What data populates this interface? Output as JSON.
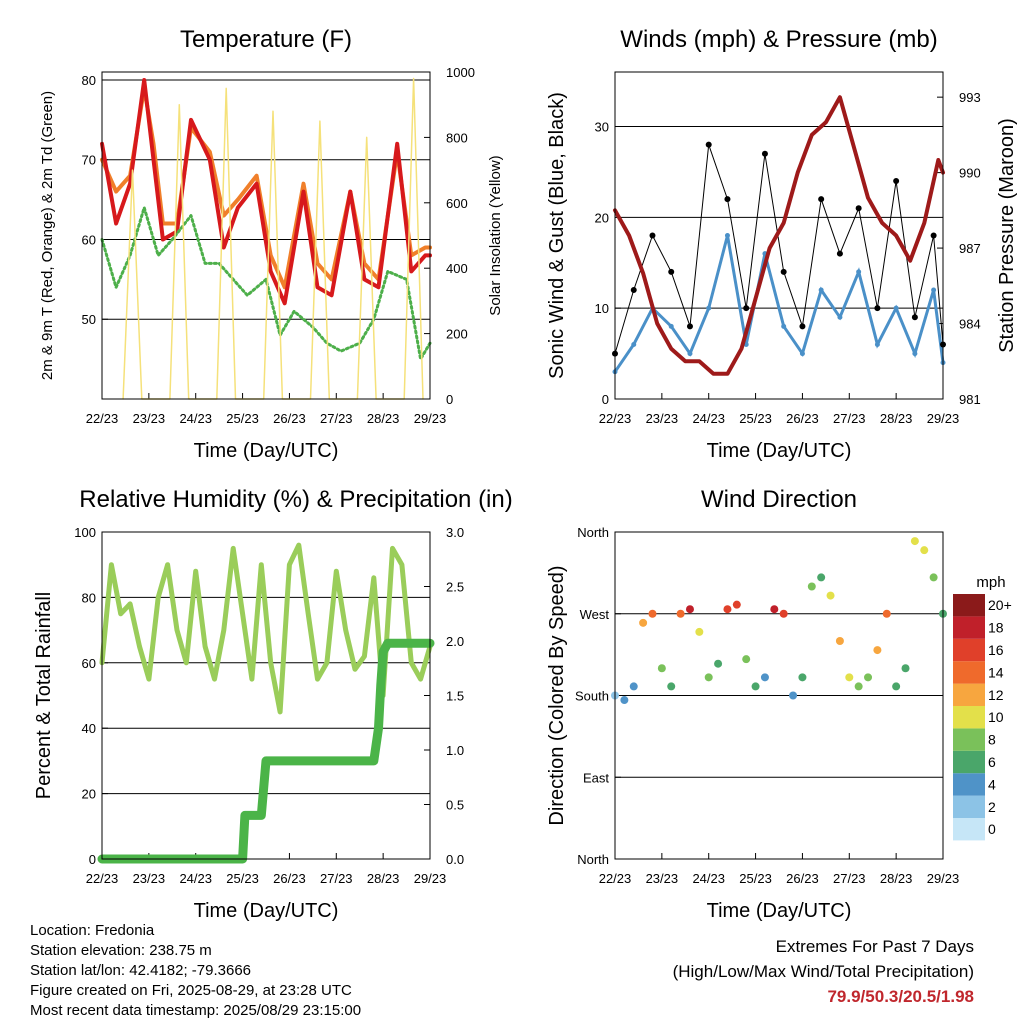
{
  "chart_data": [
    {
      "type": "line",
      "title": "Temperature (F)",
      "xlabel": "Time (Day/UTC)",
      "ylabel": "2m & 9m T (Red, Orange) & 2m Td (Green)",
      "y2label": "Solar Insolation (Yellow)",
      "x_ticks": [
        "22/23",
        "23/23",
        "24/23",
        "25/23",
        "26/23",
        "27/23",
        "28/23",
        "29/23"
      ],
      "ylim": [
        40,
        81
      ],
      "y_ticks": [
        50,
        60,
        70,
        80
      ],
      "y2lim": [
        0,
        1000
      ],
      "y2_ticks": [
        0,
        200,
        400,
        600,
        800,
        1000
      ],
      "grid": true,
      "colors": {
        "t2m": "#d7191c",
        "t9m": "#f07f2a",
        "td2m": "#4daf4a",
        "solar": "#f5e17a"
      },
      "series": [
        {
          "key": "t9m",
          "x": [
            0,
            0.3,
            0.6,
            0.9,
            1.1,
            1.3,
            1.6,
            1.9,
            2.3,
            2.6,
            2.9,
            3.3,
            3.6,
            3.9,
            4.3,
            4.6,
            4.9,
            5.3,
            5.6,
            5.9,
            6.3,
            6.6,
            6.9,
            7.0
          ],
          "values": [
            70,
            66,
            68,
            79,
            72,
            62,
            62,
            74,
            71,
            63,
            65,
            68,
            58,
            54,
            67,
            57,
            55,
            66,
            57,
            55,
            71,
            58,
            59,
            59
          ]
        },
        {
          "key": "t2m",
          "x": [
            0,
            0.3,
            0.6,
            0.9,
            1.1,
            1.3,
            1.6,
            1.9,
            2.3,
            2.6,
            2.9,
            3.3,
            3.6,
            3.9,
            4.3,
            4.6,
            4.9,
            5.3,
            5.6,
            5.9,
            6.3,
            6.6,
            6.9,
            7.0
          ],
          "values": [
            72,
            62,
            67,
            80,
            70,
            60,
            61,
            75,
            70,
            59,
            64,
            67,
            56,
            52,
            66,
            54,
            53,
            66,
            55,
            54,
            72,
            56,
            58,
            58
          ]
        },
        {
          "key": "td2m",
          "x": [
            0,
            0.3,
            0.6,
            0.9,
            1.2,
            1.5,
            1.9,
            2.2,
            2.5,
            2.8,
            3.1,
            3.5,
            3.8,
            4.1,
            4.5,
            4.8,
            5.1,
            5.5,
            5.8,
            6.1,
            6.5,
            6.8,
            7.0
          ],
          "values": [
            60,
            54,
            58,
            64,
            58,
            60,
            63,
            57,
            57,
            55,
            53,
            55,
            48,
            51,
            49,
            47,
            46,
            47,
            50,
            56,
            55,
            45,
            47
          ]
        },
        {
          "key": "solar",
          "x": [
            0.45,
            0.65,
            0.85,
            1.45,
            1.65,
            1.85,
            2.45,
            2.65,
            2.85,
            3.45,
            3.65,
            3.85,
            4.45,
            4.65,
            4.85,
            5.45,
            5.65,
            5.85,
            6.45,
            6.65,
            6.85
          ],
          "values": [
            0,
            700,
            0,
            0,
            900,
            0,
            0,
            950,
            0,
            0,
            880,
            0,
            0,
            850,
            0,
            0,
            800,
            0,
            0,
            980,
            0
          ]
        }
      ]
    },
    {
      "type": "scatter",
      "title": "Winds (mph) & Pressure (mb)",
      "xlabel": "Time (Day/UTC)",
      "ylabel": "Sonic Wind & Gust (Blue, Black)",
      "y2label": "Station Pressure (Maroon)",
      "x_ticks": [
        "22/23",
        "23/23",
        "24/23",
        "25/23",
        "26/23",
        "27/23",
        "28/23",
        "29/23"
      ],
      "ylim": [
        0,
        36
      ],
      "y_ticks": [
        0,
        10,
        20,
        30
      ],
      "y2lim": [
        981,
        994
      ],
      "y2_ticks": [
        981,
        984,
        987,
        990,
        993
      ],
      "grid": true,
      "colors": {
        "wind": "#4a90c8",
        "gust": "#000000",
        "pressure": "#9e1a1a"
      },
      "series": [
        {
          "key": "wind",
          "x": [
            0,
            0.4,
            0.8,
            1.2,
            1.6,
            2.0,
            2.4,
            2.8,
            3.2,
            3.6,
            4.0,
            4.4,
            4.8,
            5.2,
            5.6,
            6.0,
            6.4,
            6.8,
            7.0
          ],
          "values": [
            3,
            6,
            10,
            8,
            5,
            10,
            18,
            6,
            16,
            8,
            5,
            12,
            9,
            14,
            6,
            10,
            5,
            12,
            4
          ]
        },
        {
          "key": "gust",
          "x": [
            0,
            0.4,
            0.8,
            1.2,
            1.6,
            2.0,
            2.4,
            2.8,
            3.2,
            3.6,
            4.0,
            4.4,
            4.8,
            5.2,
            5.6,
            6.0,
            6.4,
            6.8,
            7.0
          ],
          "values": [
            5,
            12,
            18,
            14,
            8,
            28,
            22,
            10,
            27,
            14,
            8,
            22,
            16,
            21,
            10,
            24,
            9,
            18,
            6
          ]
        },
        {
          "key": "pressure",
          "x": [
            0,
            0.3,
            0.6,
            0.9,
            1.2,
            1.5,
            1.8,
            2.1,
            2.4,
            2.7,
            3.0,
            3.3,
            3.6,
            3.9,
            4.2,
            4.5,
            4.8,
            5.1,
            5.4,
            5.7,
            6.0,
            6.3,
            6.6,
            6.9,
            7.0
          ],
          "values": [
            988.5,
            987.5,
            986,
            984,
            983,
            982.5,
            982.5,
            982,
            982,
            983,
            985,
            987,
            988,
            990,
            991.5,
            992,
            993,
            991,
            989,
            988,
            987.5,
            986.5,
            988,
            990.5,
            990
          ]
        }
      ]
    },
    {
      "type": "line",
      "title": "Relative Humidity (%) & Precipitation (in)",
      "xlabel": "Time (Day/UTC)",
      "ylabel": "Percent & Total Rainfall",
      "x_ticks": [
        "22/23",
        "23/23",
        "24/23",
        "25/23",
        "26/23",
        "27/23",
        "28/23",
        "29/23"
      ],
      "ylim": [
        0,
        100
      ],
      "y_ticks": [
        0,
        20,
        40,
        60,
        80,
        100
      ],
      "y2lim": [
        0,
        3.0
      ],
      "y2_ticks": [
        "0.0",
        "0.5",
        "1.0",
        "1.5",
        "2.0",
        "2.5",
        "3.0"
      ],
      "grid": true,
      "colors": {
        "rh": "#9acd5a",
        "precip": "#4bb448"
      },
      "series": [
        {
          "key": "rh",
          "x": [
            0,
            0.2,
            0.4,
            0.6,
            0.8,
            1.0,
            1.2,
            1.4,
            1.6,
            1.8,
            2.0,
            2.2,
            2.4,
            2.6,
            2.8,
            3.0,
            3.2,
            3.4,
            3.6,
            3.8,
            4.0,
            4.2,
            4.4,
            4.6,
            4.8,
            5.0,
            5.2,
            5.4,
            5.6,
            5.8,
            6.0,
            6.2,
            6.4,
            6.6,
            6.8,
            7.0
          ],
          "values": [
            60,
            90,
            75,
            78,
            65,
            55,
            80,
            90,
            70,
            60,
            88,
            65,
            55,
            70,
            95,
            75,
            55,
            90,
            60,
            45,
            90,
            96,
            75,
            55,
            60,
            88,
            70,
            58,
            62,
            86,
            50,
            95,
            90,
            60,
            55,
            65
          ]
        },
        {
          "key": "precip",
          "x": [
            0,
            3.0,
            3.05,
            3.4,
            3.5,
            3.9,
            4.0,
            4.5,
            5.0,
            5.5,
            5.8,
            5.9,
            5.95,
            6.0,
            6.1,
            7.0
          ],
          "values": [
            0,
            0,
            0.4,
            0.4,
            0.9,
            0.9,
            0.9,
            0.9,
            0.9,
            0.9,
            0.9,
            1.2,
            1.6,
            1.9,
            1.98,
            1.98
          ]
        }
      ]
    },
    {
      "type": "scatter",
      "title": "Wind Direction",
      "xlabel": "Time (Day/UTC)",
      "ylabel": "Direction (Colored By Speed)",
      "x_ticks": [
        "22/23",
        "23/23",
        "24/23",
        "25/23",
        "26/23",
        "27/23",
        "28/23",
        "29/23"
      ],
      "y_ticks": [
        "North",
        "East",
        "South",
        "West",
        "North"
      ],
      "ylim": [
        0,
        360
      ],
      "grid": true,
      "legend": {
        "title": "mph",
        "labels": [
          "0",
          "2",
          "4",
          "6",
          "8",
          "10",
          "12",
          "14",
          "16",
          "18",
          "20+"
        ],
        "colors": [
          "#c6e6f7",
          "#8cc3e6",
          "#4f93c8",
          "#4aa66a",
          "#7ac15a",
          "#e3e04a",
          "#f7a63f",
          "#ef6a2c",
          "#e0402a",
          "#c0202a",
          "#8b1a1a"
        ],
        "position": "right"
      },
      "series": [
        {
          "key": "direction",
          "x": [
            0,
            0.2,
            0.4,
            0.6,
            0.8,
            1.0,
            1.2,
            1.4,
            1.6,
            1.8,
            2.0,
            2.2,
            2.4,
            2.6,
            2.8,
            3.0,
            3.2,
            3.4,
            3.6,
            3.8,
            4.0,
            4.2,
            4.4,
            4.6,
            4.8,
            5.0,
            5.2,
            5.4,
            5.6,
            5.8,
            6.0,
            6.2,
            6.4,
            6.6,
            6.8,
            7.0
          ],
          "values": [
            180,
            175,
            190,
            260,
            270,
            210,
            190,
            270,
            275,
            250,
            200,
            215,
            275,
            280,
            220,
            190,
            200,
            275,
            270,
            180,
            200,
            300,
            310,
            290,
            240,
            200,
            190,
            200,
            230,
            270,
            190,
            210,
            350,
            340,
            310,
            270
          ],
          "speed": [
            3,
            4,
            4,
            12,
            14,
            8,
            6,
            15,
            18,
            10,
            8,
            7,
            16,
            17,
            8,
            6,
            5,
            18,
            16,
            4,
            6,
            8,
            6,
            10,
            12,
            10,
            9,
            8,
            12,
            14,
            6,
            6,
            10,
            10,
            9,
            6
          ]
        }
      ]
    }
  ],
  "footer": {
    "location": "Location: Fredonia",
    "elevation": "Station elevation: 238.75 m",
    "latlon": "Station lat/lon: 42.4182; -79.3666",
    "created": "Figure created on Fri, 2025-08-29, at 23:28 UTC",
    "recent": "Most recent data timestamp: 2025/08/29 23:15:00"
  },
  "extremes": {
    "heading": "Extremes For Past 7 Days",
    "subheading": "(High/Low/Max Wind/Total Precipitation)",
    "values": "79.9/50.3/20.5/1.98"
  }
}
